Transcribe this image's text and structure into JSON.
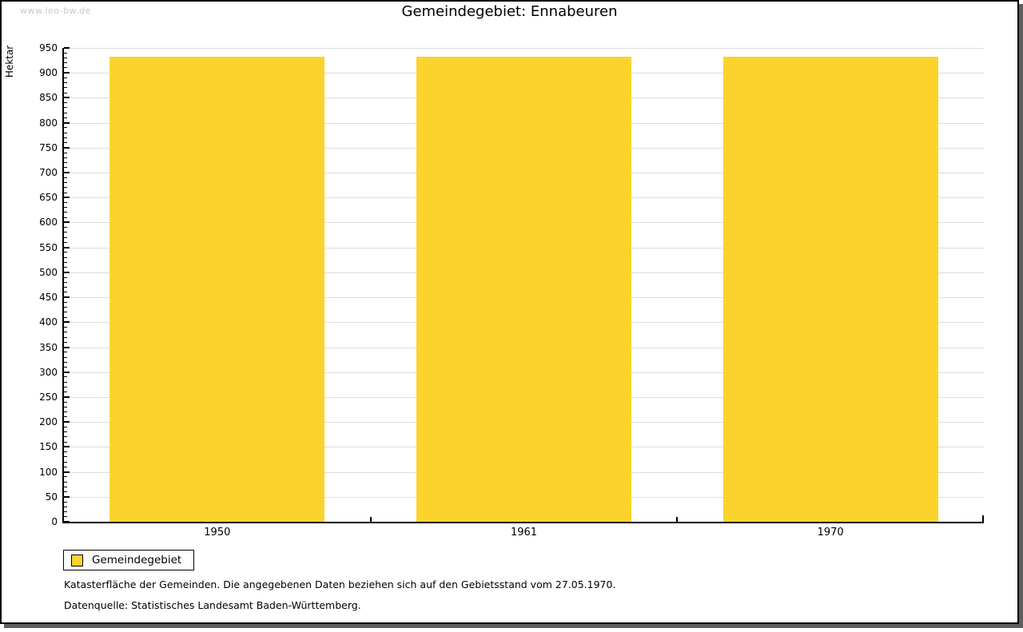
{
  "watermark": "www.leo-bw.de",
  "title": "Gemeindegebiet: Ennabeuren",
  "legend": {
    "label": "Gemeindegebiet"
  },
  "footnotes": {
    "line1": "Katasterfläche der Gemeinden. Die angegebenen Daten beziehen sich auf den Gebietsstand vom 27.05.1970.",
    "line2": "Datenquelle: Statistisches Landesamt Baden-Württemberg."
  },
  "colors": {
    "bar": "#FCD32D",
    "gridline": "#DDDDDD",
    "axis": "#000000",
    "watermark": "#C9C9C9",
    "frame_shadow": "#5E5E5E",
    "legend_border": "#000000"
  },
  "chart_data": {
    "type": "bar",
    "title": "Gemeindegebiet: Ennabeuren",
    "categories": [
      "1950",
      "1961",
      "1970"
    ],
    "series": [
      {
        "name": "Gemeindegebiet",
        "color": "#FCD32D",
        "values": [
          932,
          932,
          932
        ]
      }
    ],
    "xlabel": "",
    "ylabel": "Hektar",
    "ylim": [
      0,
      950
    ],
    "y_major_step": 50,
    "y_minor_step": 10,
    "grid": true,
    "legend_position": "bottom-left"
  }
}
